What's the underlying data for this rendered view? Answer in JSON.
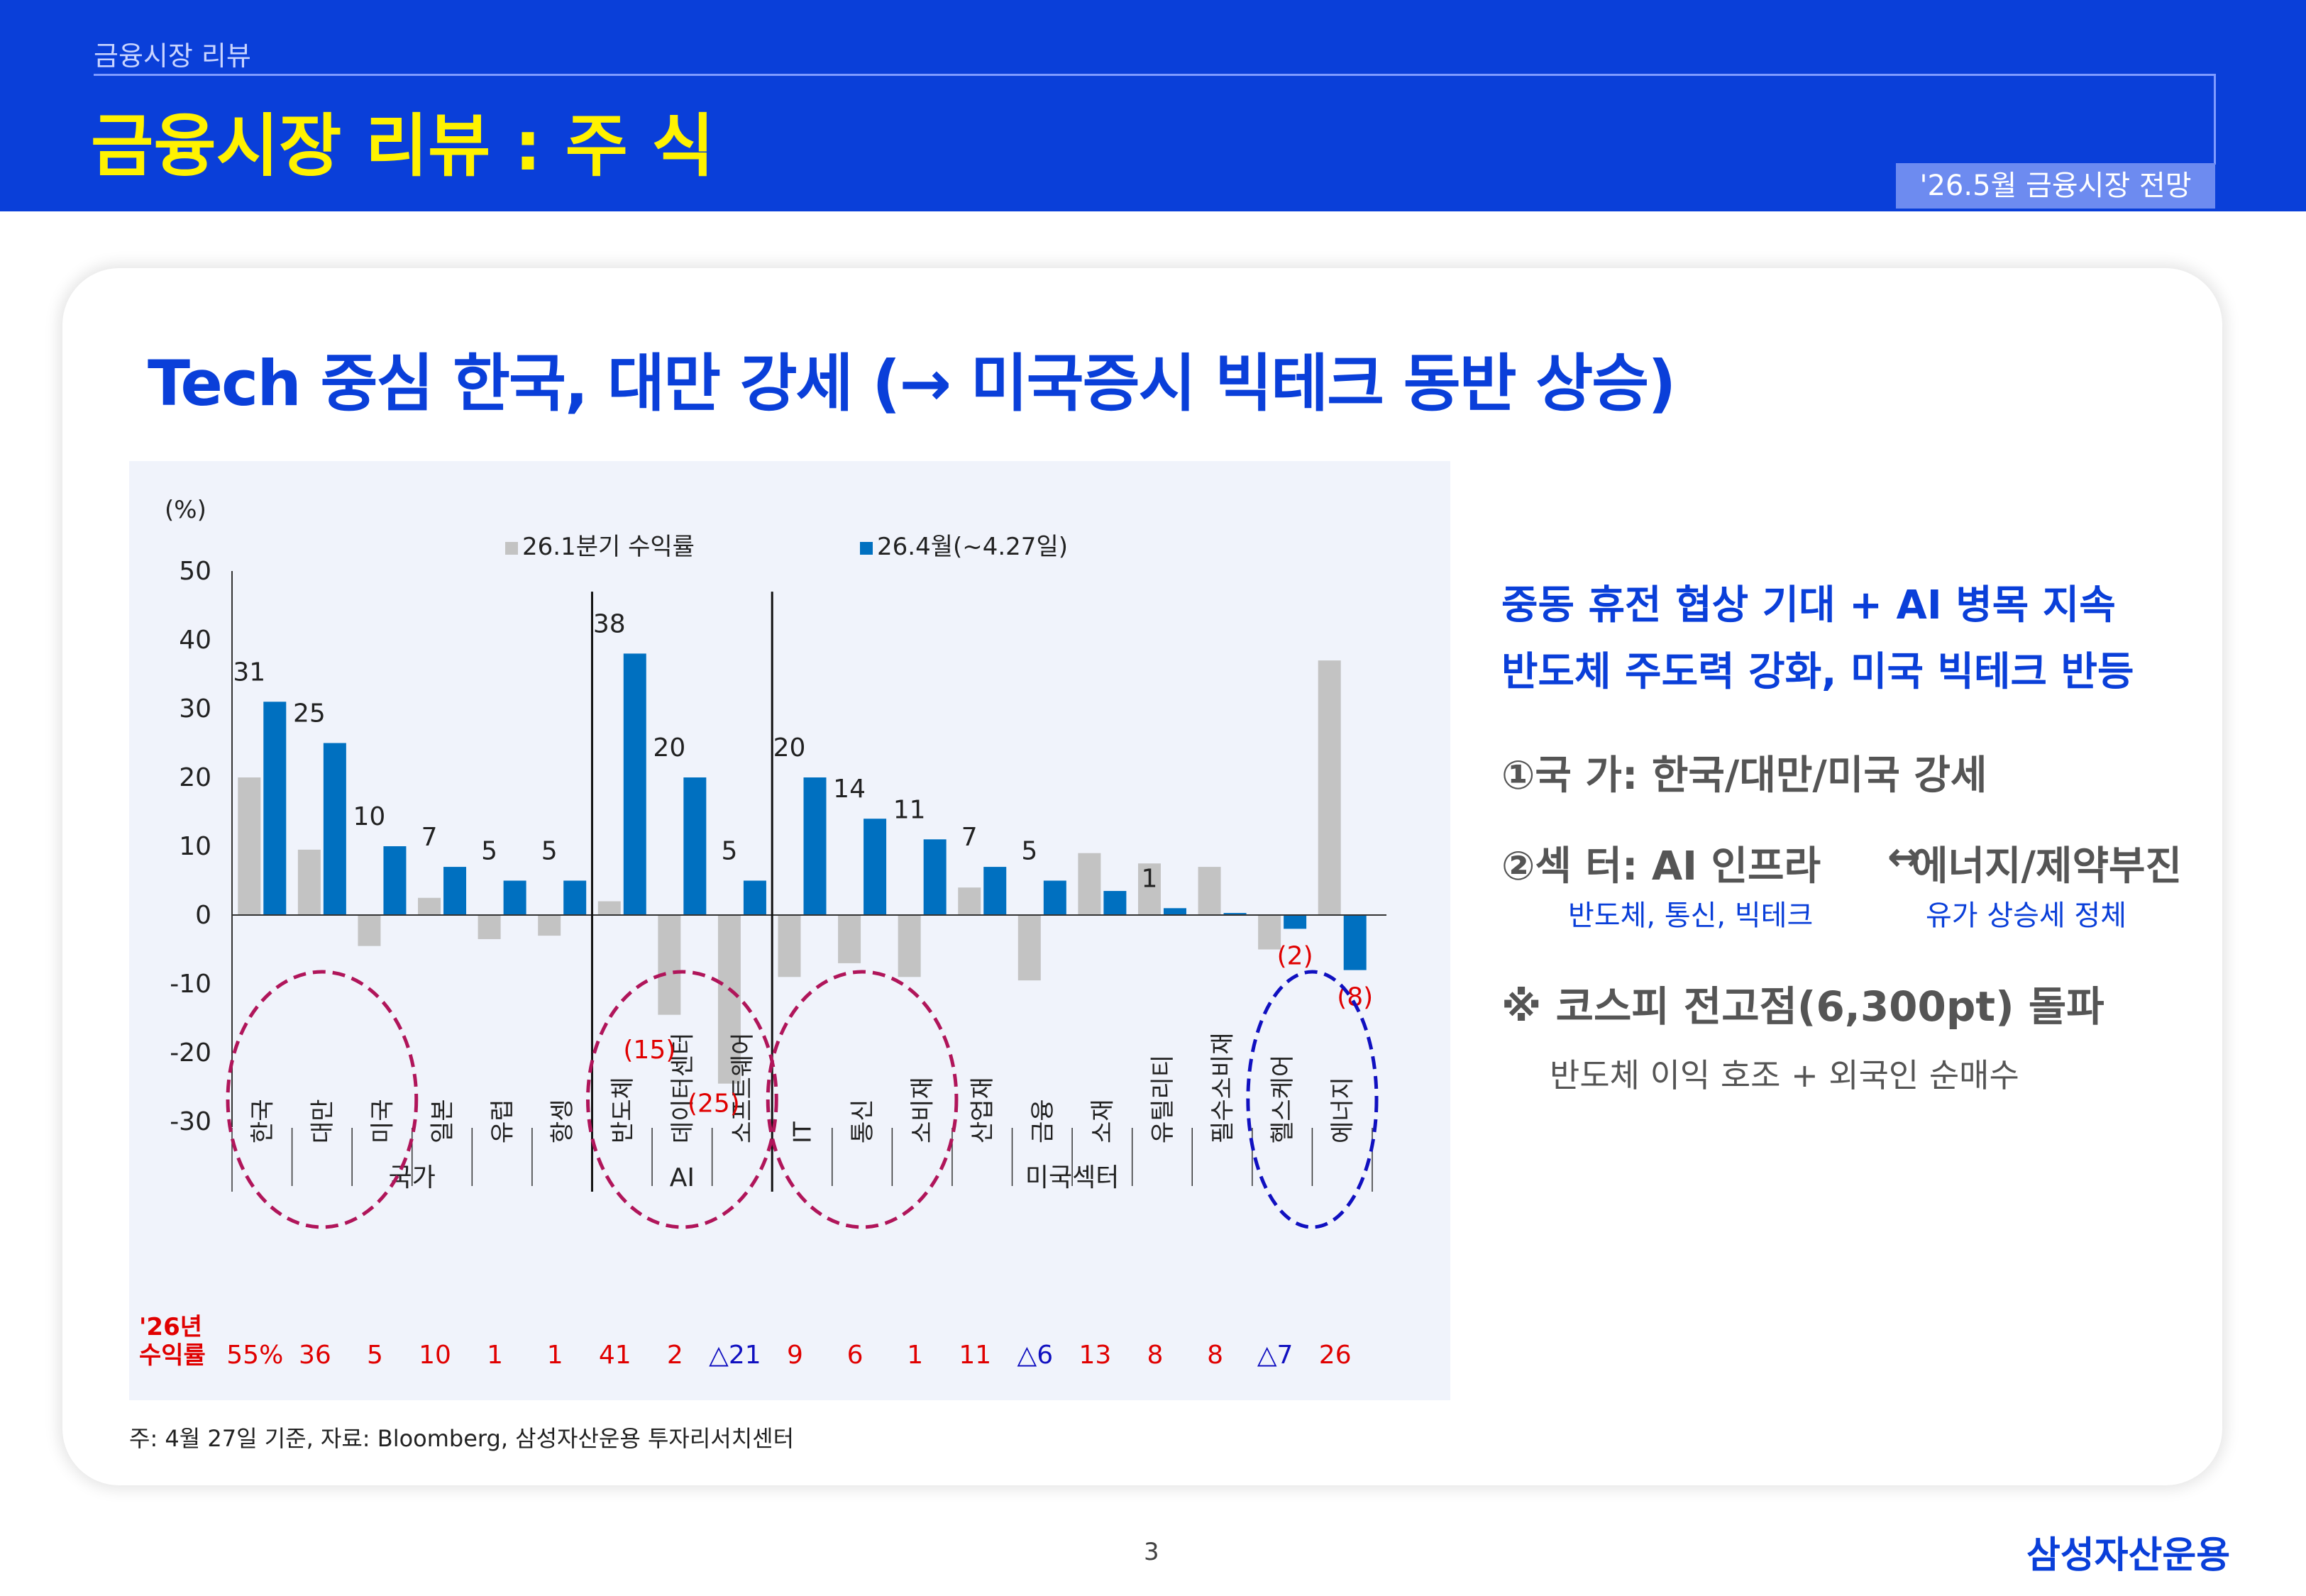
{
  "header": {
    "section_label": "금융시장 리뷰",
    "title": "금융시장 리뷰 : 주 식",
    "tag": "'26.5월 금융시장 전망"
  },
  "headline": "Tech 중심 한국, 대만 강세 (→ 미국증시 빅테크 동반 상승)",
  "colors": {
    "brand_blue": "#0a3fd9",
    "title_yellow": "#fff200",
    "q1_bar": "#c3c3c3",
    "apr_bar": "#0070c0",
    "neg_label": "#e00000",
    "ellipse_country": "#b0155a",
    "ellipse_energy": "#1010c0"
  },
  "chart_data": {
    "type": "bar",
    "unit_label": "(%)",
    "ylim": [
      -30,
      50
    ],
    "yticks": [
      50,
      40,
      30,
      20,
      10,
      0,
      -10,
      -20,
      -30
    ],
    "categories": [
      "한국",
      "대만",
      "미국",
      "일본",
      "유럽",
      "항셍",
      "반도체",
      "데이터센터",
      "소프트웨어",
      "IT",
      "통신",
      "소비재",
      "산업재",
      "금융",
      "소재",
      "유틸리티",
      "필수소비재",
      "헬스케어",
      "에너지"
    ],
    "series": [
      {
        "name": "26.1분기 수익률",
        "values": [
          20,
          9.5,
          -4.5,
          2.5,
          -3.5,
          -3,
          2,
          -14.5,
          -24.5,
          -9,
          -7,
          -9,
          4,
          -9.5,
          9,
          7.5,
          7,
          -5,
          37
        ]
      },
      {
        "name": "26.4월(~4.27일)",
        "values": [
          31,
          25,
          10,
          7,
          5,
          5,
          38,
          20,
          5,
          20,
          14,
          11,
          7,
          5,
          3.5,
          1,
          0.3,
          -2,
          -8
        ]
      }
    ],
    "data_labels": [
      "31",
      "25",
      "10",
      "7",
      "5",
      "5",
      "38",
      "20",
      "5",
      "20",
      "14",
      "11",
      "7",
      "5",
      "",
      "1",
      "",
      "(2)",
      "(8)"
    ],
    "extra_labels": [
      "(15)",
      "(25)"
    ],
    "groups": [
      {
        "name": "국가",
        "from": 0,
        "to": 5
      },
      {
        "name": "AI",
        "from": 6,
        "to": 8
      },
      {
        "name": "미국섹터",
        "from": 9,
        "to": 18
      }
    ],
    "ytd_row": {
      "label_line1": "'26년",
      "label_line2": "수익률",
      "values": [
        "55%",
        "36",
        "5",
        "10",
        "1",
        "1",
        "41",
        "2",
        "△21",
        "9",
        "6",
        "1",
        "11",
        "△6",
        "13",
        "8",
        "8",
        "△7",
        "26"
      ],
      "negative": [
        false,
        false,
        false,
        false,
        false,
        false,
        false,
        false,
        true,
        false,
        false,
        false,
        false,
        true,
        false,
        false,
        false,
        true,
        false
      ]
    },
    "grid": false,
    "legend_position": "top"
  },
  "right_panel": {
    "heading_line1": "중동 휴전 협상 기대 + AI 병목 지속",
    "heading_line2": "반도체 주도력 강화, 미국 빅테크 반등",
    "point1": "①국  가: 한국/대만/미국 강세",
    "point2_left": "②섹  터: AI 인프라",
    "point2_arrow": "↔",
    "point2_right": "에너지/제약부진",
    "point2_sub_left": "반도체, 통신, 빅테크",
    "point2_sub_right": "유가 상승세 정체",
    "point3": "※ 코스피 전고점(6,300pt) 돌파",
    "point3_sub": "반도체 이익 호조 + 외국인 순매수"
  },
  "source_note": "주: 4월 27일 기준, 자료: Bloomberg, 삼성자산운용 투자리서치센터",
  "page_number": "3",
  "brand": "삼성자산운용"
}
